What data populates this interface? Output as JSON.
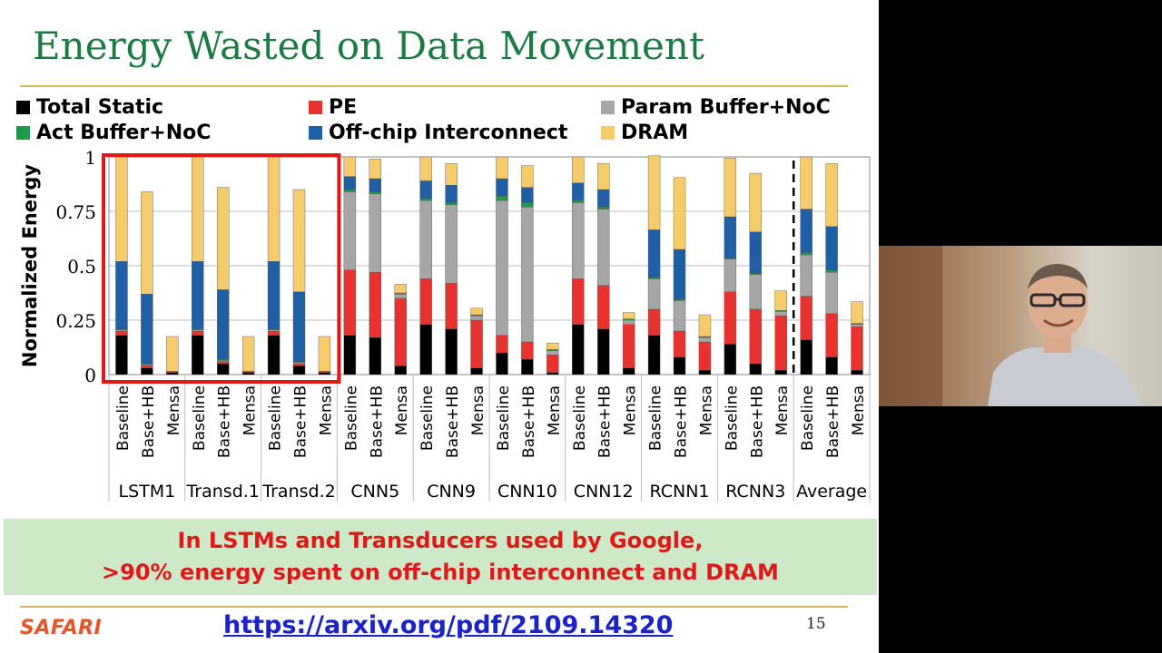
{
  "slide": {
    "title": "Energy Wasted on Data Movement",
    "callout_line1": "In LSTMs and Transducers used by Google,",
    "callout_line2": ">90% energy spent on off-chip interconnect and DRAM",
    "logo": "SAFARI",
    "link": "https://arxiv.org/pdf/2109.14320",
    "page_number": "15"
  },
  "legend": [
    {
      "label": "Total Static",
      "color": "#000000"
    },
    {
      "label": "PE",
      "color": "#e8322d"
    },
    {
      "label": "Param Buffer+NoC",
      "color": "#a6a6a6"
    },
    {
      "label": "Act Buffer+NoC",
      "color": "#1f9a4a"
    },
    {
      "label": "Off-chip Interconnect",
      "color": "#1f5fa3"
    },
    {
      "label": "DRAM",
      "color": "#f5cb6b"
    }
  ],
  "chart_data": {
    "type": "bar",
    "stacked": true,
    "ylabel": "Normalized Energy",
    "ylim": [
      0,
      1
    ],
    "yticks": [
      "0",
      "0.25",
      "0.5",
      "0.75",
      "1"
    ],
    "grid": true,
    "bar_labels": [
      "Baseline",
      "Base+HB",
      "Mensa"
    ],
    "groups": [
      "LSTM1",
      "Transd.1",
      "Transd.2",
      "CNN5",
      "CNN9",
      "CNN10",
      "CNN12",
      "RCNN1",
      "RCNN3",
      "Average"
    ],
    "series_order": [
      "Total Static",
      "PE",
      "Param Buffer+NoC",
      "Act Buffer+NoC",
      "Off-chip Interconnect",
      "DRAM"
    ],
    "highlighted_groups": [
      "LSTM1",
      "Transd.1",
      "Transd.2"
    ],
    "values": [
      [
        [
          0.18,
          0.02,
          0.005,
          0.005,
          0.31,
          0.48
        ],
        [
          0.03,
          0.01,
          0.005,
          0.005,
          0.32,
          0.47
        ],
        [
          0.01,
          0.005,
          0,
          0,
          0,
          0.16
        ]
      ],
      [
        [
          0.18,
          0.02,
          0.005,
          0.005,
          0.31,
          0.48
        ],
        [
          0.05,
          0.01,
          0.005,
          0.005,
          0.32,
          0.47
        ],
        [
          0.01,
          0.005,
          0,
          0,
          0,
          0.16
        ]
      ],
      [
        [
          0.18,
          0.02,
          0.005,
          0.005,
          0.31,
          0.48
        ],
        [
          0.04,
          0.01,
          0.005,
          0.005,
          0.32,
          0.47
        ],
        [
          0.01,
          0.005,
          0,
          0,
          0,
          0.16
        ]
      ],
      [
        [
          0.18,
          0.3,
          0.36,
          0.01,
          0.06,
          0.09
        ],
        [
          0.17,
          0.3,
          0.36,
          0.01,
          0.06,
          0.09
        ],
        [
          0.04,
          0.31,
          0.02,
          0.005,
          0,
          0.04
        ]
      ],
      [
        [
          0.23,
          0.21,
          0.36,
          0.01,
          0.08,
          0.11
        ],
        [
          0.21,
          0.21,
          0.36,
          0.01,
          0.08,
          0.1
        ],
        [
          0.03,
          0.22,
          0.02,
          0.005,
          0,
          0.03
        ]
      ],
      [
        [
          0.1,
          0.08,
          0.62,
          0.02,
          0.08,
          0.1
        ],
        [
          0.07,
          0.08,
          0.62,
          0.02,
          0.07,
          0.1
        ],
        [
          0.01,
          0.08,
          0.02,
          0.005,
          0,
          0.03
        ]
      ],
      [
        [
          0.23,
          0.21,
          0.35,
          0.01,
          0.08,
          0.12
        ],
        [
          0.21,
          0.2,
          0.35,
          0.01,
          0.08,
          0.12
        ],
        [
          0.03,
          0.2,
          0.02,
          0.005,
          0,
          0.03
        ]
      ],
      [
        [
          0.18,
          0.12,
          0.14,
          0.005,
          0.22,
          0.34
        ],
        [
          0.08,
          0.12,
          0.14,
          0.005,
          0.23,
          0.33
        ],
        [
          0.02,
          0.13,
          0.02,
          0.005,
          0,
          0.1
        ]
      ],
      [
        [
          0.14,
          0.24,
          0.15,
          0.005,
          0.19,
          0.27
        ],
        [
          0.05,
          0.25,
          0.16,
          0.005,
          0.19,
          0.27
        ],
        [
          0.02,
          0.25,
          0.02,
          0.005,
          0,
          0.09
        ]
      ],
      [
        [
          0.16,
          0.2,
          0.19,
          0.01,
          0.2,
          0.24
        ],
        [
          0.08,
          0.2,
          0.19,
          0.01,
          0.2,
          0.29
        ],
        [
          0.02,
          0.2,
          0.01,
          0.005,
          0,
          0.1
        ]
      ]
    ]
  },
  "camera": {
    "icon": "webcam-feed"
  }
}
